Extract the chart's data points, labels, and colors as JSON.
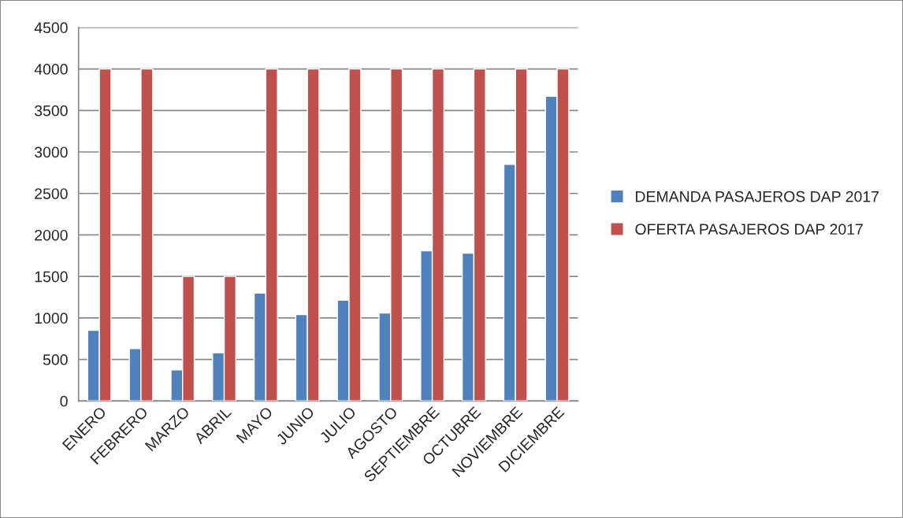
{
  "chart_data": {
    "type": "bar",
    "categories": [
      "ENERO",
      "FEBRERO",
      "MARZO",
      "ABRIL",
      "MAYO",
      "JUNIO",
      "JULIO",
      "AGOSTO",
      "SEPTIEMBRE",
      "OCTUBRE",
      "NOVIEMBRE",
      "DICIEMBRE"
    ],
    "series": [
      {
        "name": "DEMANDA PASAJEROS DAP 2017",
        "color": "#4f81bd",
        "values": [
          850,
          630,
          375,
          580,
          1300,
          1040,
          1215,
          1060,
          1810,
          1780,
          2850,
          3670
        ]
      },
      {
        "name": "OFERTA PASAJEROS DAP 2017",
        "color": "#c0504d",
        "values": [
          4000,
          4000,
          1500,
          1500,
          4000,
          4000,
          4000,
          4000,
          4000,
          4000,
          4000,
          4000
        ]
      }
    ],
    "ylim": [
      0,
      4500
    ],
    "yticks": [
      0,
      500,
      1000,
      1500,
      2000,
      2500,
      3000,
      3500,
      4000,
      4500
    ],
    "grid": "y",
    "legend": "right"
  }
}
